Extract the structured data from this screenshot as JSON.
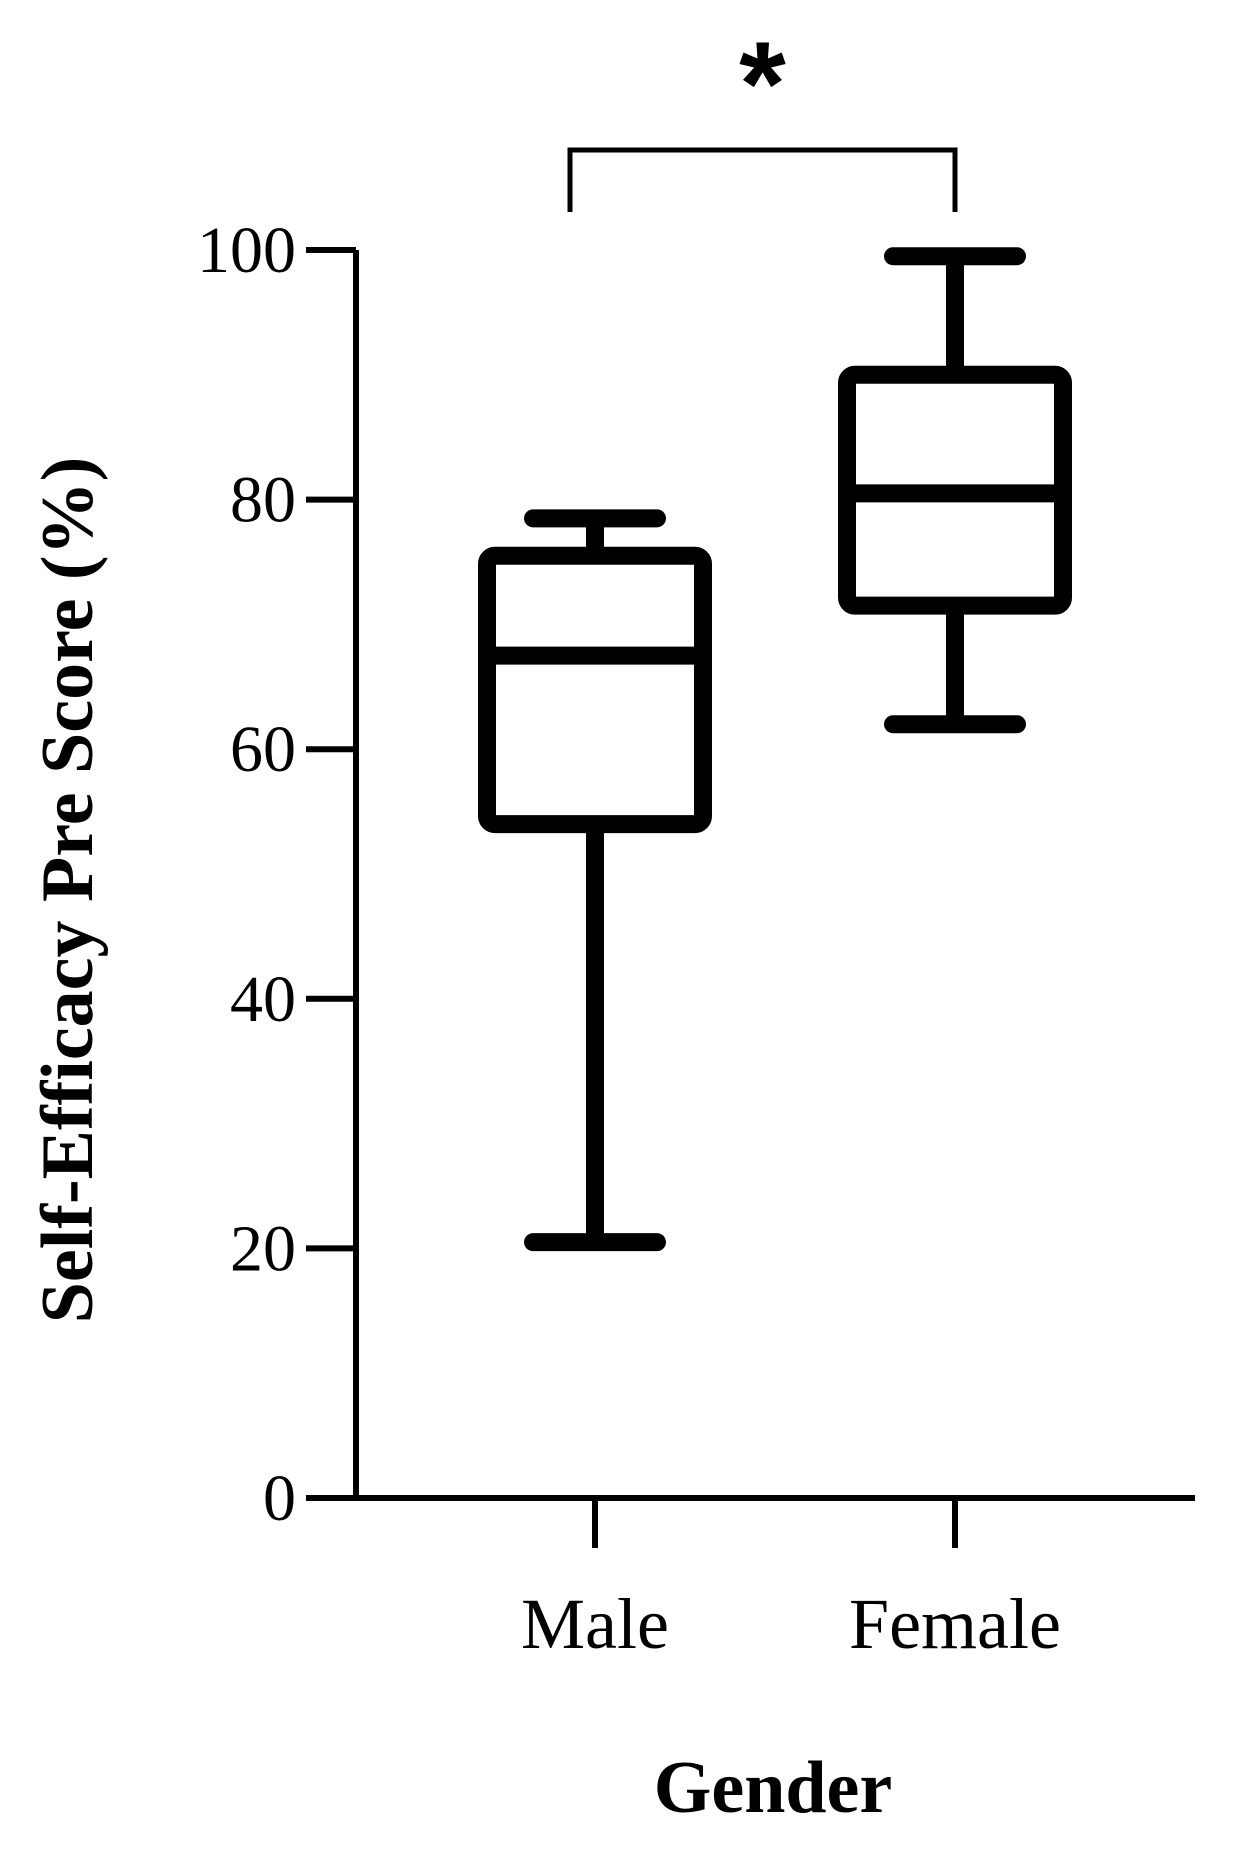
{
  "chart_data": {
    "type": "box",
    "title": "",
    "xlabel": "Gender",
    "ylabel": "Self-Efficacy Pre Score (%)",
    "ylim": [
      0,
      100
    ],
    "yticks": [
      "0",
      "20",
      "40",
      "60",
      "80",
      "100"
    ],
    "categories": [
      "Male",
      "Female"
    ],
    "boxes": [
      {
        "category": "Male",
        "min": 20.5,
        "q1": 54,
        "median": 67.5,
        "q3": 75.5,
        "max": 78.5
      },
      {
        "category": "Female",
        "min": 62,
        "q1": 71.5,
        "median": 80.5,
        "q3": 90,
        "max": 99.5
      }
    ],
    "significance": {
      "label": "*",
      "between": [
        "Male",
        "Female"
      ]
    },
    "grid": false,
    "legend": "none",
    "color": "#000000"
  }
}
